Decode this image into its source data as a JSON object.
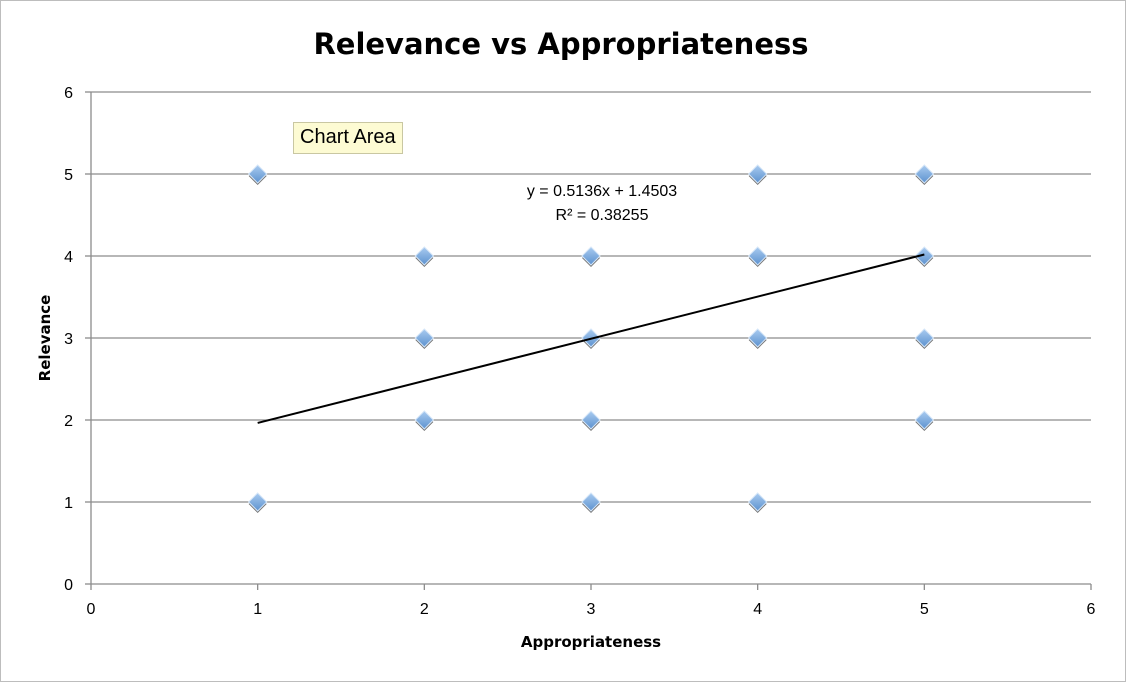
{
  "chart_data": {
    "type": "scatter",
    "title": "Relevance vs Appropriateness",
    "xlabel": "Appropriateness",
    "ylabel": "Relevance",
    "xlim": [
      0,
      6
    ],
    "ylim": [
      0,
      6
    ],
    "xticks": [
      "0",
      "1",
      "2",
      "3",
      "4",
      "5",
      "6"
    ],
    "yticks": [
      "0",
      "1",
      "2",
      "3",
      "4",
      "5",
      "6"
    ],
    "grid": "horizontal",
    "legend": "none",
    "points": [
      {
        "x": 1,
        "y": 5
      },
      {
        "x": 1,
        "y": 1
      },
      {
        "x": 2,
        "y": 4
      },
      {
        "x": 2,
        "y": 3
      },
      {
        "x": 2,
        "y": 2
      },
      {
        "x": 3,
        "y": 4
      },
      {
        "x": 3,
        "y": 3
      },
      {
        "x": 3,
        "y": 2
      },
      {
        "x": 3,
        "y": 1
      },
      {
        "x": 4,
        "y": 5
      },
      {
        "x": 4,
        "y": 4
      },
      {
        "x": 4,
        "y": 3
      },
      {
        "x": 4,
        "y": 1
      },
      {
        "x": 5,
        "y": 5
      },
      {
        "x": 5,
        "y": 4
      },
      {
        "x": 5,
        "y": 3
      },
      {
        "x": 5,
        "y": 2
      }
    ],
    "trendline": {
      "type": "linear",
      "slope": 0.5136,
      "intercept": 1.4503,
      "x_range": [
        1,
        5
      ],
      "equation": "y = 0.5136x + 1.4503",
      "r_squared": "R² = 0.38255"
    },
    "marker_color": "#6fa3db",
    "gridline_color": "#8c8c8c"
  },
  "tooltip": {
    "text": "Chart Area"
  }
}
